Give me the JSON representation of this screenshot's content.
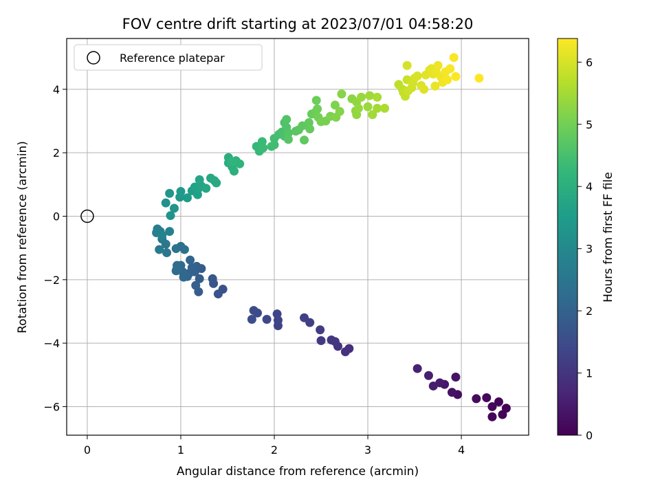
{
  "chart_data": {
    "type": "scatter",
    "title": "FOV centre drift starting at 2023/07/01 04:58:20",
    "xlabel": "Angular distance from reference (arcmin)",
    "ylabel": "Rotation from reference (arcmin)",
    "xlim": [
      -0.22,
      4.72
    ],
    "ylim": [
      -6.9,
      5.6
    ],
    "xticks": [
      0,
      1,
      2,
      3,
      4
    ],
    "yticks": [
      -6,
      -4,
      -2,
      0,
      2,
      4
    ],
    "grid": true,
    "legend": {
      "placement": "top-left",
      "label": "Reference platepar"
    },
    "reference_point": {
      "x": 0,
      "y": 0
    },
    "colorbar": {
      "label": "Hours from first FF file",
      "range": [
        0,
        6.38
      ],
      "ticks": [
        0,
        1,
        2,
        3,
        4,
        5,
        6
      ],
      "colormap": "viridis"
    },
    "colormap_stops": [
      "#440154",
      "#482878",
      "#3e4989",
      "#31688e",
      "#26828e",
      "#1f9e89",
      "#35b779",
      "#6ece58",
      "#b5de2b",
      "#fde725"
    ],
    "points": [
      [
        4.48,
        -6.05,
        0.0
      ],
      [
        4.44,
        -6.25,
        0.03
      ],
      [
        4.4,
        -5.85,
        0.06
      ],
      [
        4.33,
        -6.32,
        0.09
      ],
      [
        4.33,
        -6.0,
        0.12
      ],
      [
        4.27,
        -5.72,
        0.15
      ],
      [
        4.16,
        -5.75,
        0.18
      ],
      [
        3.96,
        -5.62,
        0.25
      ],
      [
        3.9,
        -5.55,
        0.3
      ],
      [
        3.94,
        -5.07,
        0.35
      ],
      [
        3.82,
        -5.3,
        0.4
      ],
      [
        3.77,
        -5.25,
        0.45
      ],
      [
        3.7,
        -5.35,
        0.5
      ],
      [
        3.65,
        -5.02,
        0.55
      ],
      [
        3.53,
        -4.8,
        0.62
      ],
      [
        2.8,
        -4.17,
        0.85
      ],
      [
        2.76,
        -4.27,
        0.9
      ],
      [
        2.68,
        -4.1,
        0.95
      ],
      [
        2.65,
        -3.95,
        1.0
      ],
      [
        2.61,
        -3.9,
        1.05
      ],
      [
        2.5,
        -3.92,
        1.1
      ],
      [
        2.49,
        -3.58,
        1.15
      ],
      [
        2.38,
        -3.35,
        1.2
      ],
      [
        2.32,
        -3.2,
        1.25
      ],
      [
        2.04,
        -3.45,
        1.3
      ],
      [
        2.04,
        -3.28,
        1.33
      ],
      [
        2.03,
        -3.08,
        1.36
      ],
      [
        1.92,
        -3.25,
        1.4
      ],
      [
        1.82,
        -3.05,
        1.45
      ],
      [
        1.78,
        -2.97,
        1.48
      ],
      [
        1.76,
        -3.25,
        1.52
      ],
      [
        1.45,
        -2.3,
        1.6
      ],
      [
        1.4,
        -2.45,
        1.65
      ],
      [
        1.35,
        -2.12,
        1.7
      ],
      [
        1.34,
        -1.97,
        1.75
      ],
      [
        1.22,
        -1.65,
        1.8
      ],
      [
        1.2,
        -1.97,
        1.85
      ],
      [
        1.19,
        -2.38,
        1.88
      ],
      [
        1.16,
        -2.18,
        1.91
      ],
      [
        1.17,
        -1.58,
        1.94
      ],
      [
        1.15,
        -1.75,
        1.97
      ],
      [
        1.12,
        -1.62,
        2.0
      ],
      [
        1.09,
        -1.8,
        2.03
      ],
      [
        1.1,
        -1.38,
        2.06
      ],
      [
        1.07,
        -1.9,
        2.09
      ],
      [
        1.03,
        -1.92,
        2.12
      ],
      [
        1.02,
        -1.75,
        2.15
      ],
      [
        1.0,
        -1.55,
        2.18
      ],
      [
        0.96,
        -1.65,
        2.21
      ],
      [
        0.95,
        -1.72,
        2.24
      ],
      [
        0.96,
        -1.55,
        2.27
      ],
      [
        1.04,
        -1.05,
        2.32
      ],
      [
        1.0,
        -0.95,
        2.37
      ],
      [
        0.95,
        -1.02,
        2.42
      ],
      [
        0.85,
        -1.15,
        2.48
      ],
      [
        0.84,
        -0.88,
        2.53
      ],
      [
        0.8,
        -0.72,
        2.58
      ],
      [
        0.77,
        -1.05,
        2.62
      ],
      [
        0.78,
        -0.48,
        2.67
      ],
      [
        0.75,
        -0.4,
        2.72
      ],
      [
        0.74,
        -0.52,
        2.77
      ],
      [
        0.88,
        -0.48,
        2.82
      ],
      [
        0.8,
        -0.6,
        2.87
      ],
      [
        0.84,
        0.42,
        3.2
      ],
      [
        0.89,
        0.02,
        3.25
      ],
      [
        0.93,
        0.25,
        3.3
      ],
      [
        0.88,
        0.72,
        3.35
      ],
      [
        0.99,
        0.6,
        3.4
      ],
      [
        1.0,
        0.78,
        3.45
      ],
      [
        1.07,
        0.58,
        3.5
      ],
      [
        1.12,
        0.8,
        3.55
      ],
      [
        1.18,
        0.68,
        3.6
      ],
      [
        1.15,
        0.92,
        3.65
      ],
      [
        1.19,
        0.88,
        3.68
      ],
      [
        1.22,
        0.95,
        3.71
      ],
      [
        1.2,
        1.15,
        3.74
      ],
      [
        1.27,
        0.88,
        3.77
      ],
      [
        1.32,
        1.2,
        3.8
      ],
      [
        1.36,
        1.12,
        3.83
      ],
      [
        1.38,
        1.05,
        3.86
      ],
      [
        1.51,
        1.68,
        3.95
      ],
      [
        1.51,
        1.85,
        3.98
      ],
      [
        1.55,
        1.55,
        4.01
      ],
      [
        1.57,
        1.42,
        4.04
      ],
      [
        1.59,
        1.75,
        4.07
      ],
      [
        1.63,
        1.65,
        4.1
      ],
      [
        1.55,
        1.72,
        4.13
      ],
      [
        1.81,
        2.2,
        4.25
      ],
      [
        1.84,
        2.05,
        4.28
      ],
      [
        1.87,
        2.35,
        4.31
      ],
      [
        1.88,
        2.15,
        4.34
      ],
      [
        1.97,
        2.2,
        4.37
      ],
      [
        2.0,
        2.25,
        4.4
      ],
      [
        2.0,
        2.45,
        4.43
      ],
      [
        2.05,
        2.58,
        4.46
      ],
      [
        2.08,
        2.65,
        4.49
      ],
      [
        2.11,
        2.52,
        4.52
      ],
      [
        2.11,
        2.95,
        4.55
      ],
      [
        2.13,
        2.8,
        4.58
      ],
      [
        2.13,
        3.05,
        4.61
      ],
      [
        2.15,
        2.62,
        4.64
      ],
      [
        2.15,
        2.42,
        4.67
      ],
      [
        2.23,
        2.68,
        4.7
      ],
      [
        2.26,
        2.72,
        4.73
      ],
      [
        2.3,
        2.85,
        4.76
      ],
      [
        2.32,
        2.4,
        4.79
      ],
      [
        2.37,
        2.95,
        4.82
      ],
      [
        2.38,
        2.75,
        4.85
      ],
      [
        2.4,
        3.22,
        4.88
      ],
      [
        2.44,
        3.28,
        4.91
      ],
      [
        2.45,
        3.65,
        4.94
      ],
      [
        2.46,
        3.38,
        4.97
      ],
      [
        2.47,
        3.12,
        5.0
      ],
      [
        2.5,
        2.98,
        5.03
      ],
      [
        2.55,
        3.0,
        5.06
      ],
      [
        2.6,
        3.15,
        5.09
      ],
      [
        2.65,
        3.5,
        5.12
      ],
      [
        2.66,
        3.12,
        5.15
      ],
      [
        2.7,
        3.3,
        5.18
      ],
      [
        2.72,
        3.85,
        5.21
      ],
      [
        2.83,
        3.7,
        5.24
      ],
      [
        2.87,
        3.32,
        5.27
      ],
      [
        2.88,
        3.6,
        5.3
      ],
      [
        2.88,
        3.2,
        5.33
      ],
      [
        2.9,
        3.4,
        5.36
      ],
      [
        2.93,
        3.75,
        5.39
      ],
      [
        3.0,
        3.45,
        5.42
      ],
      [
        3.02,
        3.8,
        5.45
      ],
      [
        3.05,
        3.2,
        5.48
      ],
      [
        3.1,
        3.4,
        5.51
      ],
      [
        3.1,
        3.75,
        5.54
      ],
      [
        3.18,
        3.4,
        5.57
      ],
      [
        3.33,
        4.15,
        5.75
      ],
      [
        3.37,
        4.0,
        5.78
      ],
      [
        3.38,
        3.9,
        5.81
      ],
      [
        3.4,
        3.78,
        5.84
      ],
      [
        3.42,
        4.3,
        5.87
      ],
      [
        3.43,
        3.95,
        5.9
      ],
      [
        3.47,
        4.05,
        5.93
      ],
      [
        3.48,
        4.2,
        5.96
      ],
      [
        3.5,
        4.35,
        5.99
      ],
      [
        3.53,
        4.42,
        6.02
      ],
      [
        3.57,
        4.12,
        6.05
      ],
      [
        3.6,
        4.0,
        6.08
      ],
      [
        3.62,
        4.45,
        6.1
      ],
      [
        3.66,
        4.6,
        6.12
      ],
      [
        3.68,
        4.65,
        6.14
      ],
      [
        3.7,
        4.48,
        6.16
      ],
      [
        3.72,
        4.1,
        6.18
      ],
      [
        3.73,
        4.55,
        6.2
      ],
      [
        3.75,
        4.75,
        6.22
      ],
      [
        3.78,
        4.4,
        6.24
      ],
      [
        3.8,
        4.22,
        6.26
      ],
      [
        3.83,
        4.55,
        6.28
      ],
      [
        3.85,
        4.3,
        6.3
      ],
      [
        3.88,
        4.65,
        6.32
      ],
      [
        3.92,
        5.0,
        6.34
      ],
      [
        3.94,
        4.4,
        6.36
      ],
      [
        3.42,
        4.75,
        6.0
      ],
      [
        4.19,
        4.35,
        6.38
      ]
    ]
  }
}
